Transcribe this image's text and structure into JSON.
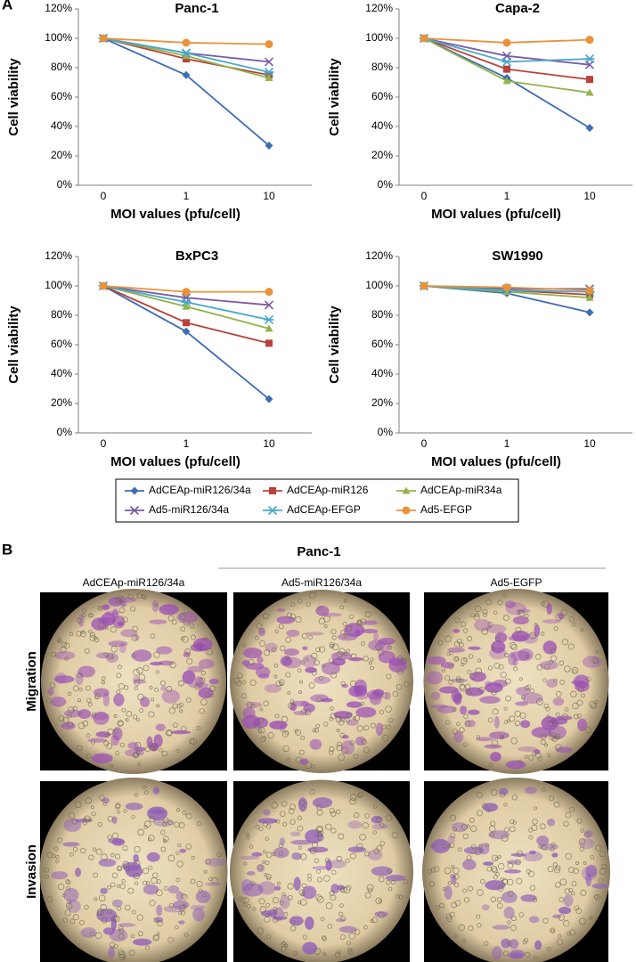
{
  "panels": {
    "a": "A",
    "b": "B"
  },
  "chart_data": [
    {
      "type": "line",
      "title": "Panc-1",
      "x_label": "MOI values (pfu/cell)",
      "y_label": "Cell viability",
      "categories": [
        "0",
        "1",
        "10"
      ],
      "ylim": [
        0,
        120
      ],
      "yticks": [
        {
          "value": 0,
          "label": "0%"
        },
        {
          "value": 20,
          "label": "20%"
        },
        {
          "value": 40,
          "label": "40%"
        },
        {
          "value": 60,
          "label": "60%"
        },
        {
          "value": 80,
          "label": "80%"
        },
        {
          "value": 100,
          "label": "100%"
        },
        {
          "value": 120,
          "label": "120%"
        }
      ],
      "series": [
        {
          "name": "AdCEAp-miR126/34a",
          "color": "#3d6db3",
          "marker": "diamond",
          "values": [
            100,
            75,
            27
          ]
        },
        {
          "name": "AdCEAp-miR126",
          "color": "#b8423c",
          "marker": "square",
          "values": [
            100,
            86,
            75
          ]
        },
        {
          "name": "AdCEAp-miR34a",
          "color": "#93b24a",
          "marker": "triangle",
          "values": [
            100,
            88,
            73
          ]
        },
        {
          "name": "Ad5-miR126/34a",
          "color": "#7a5ca6",
          "marker": "cross",
          "values": [
            100,
            90,
            84
          ]
        },
        {
          "name": "AdCEAp-EFGP",
          "color": "#48a8c8",
          "marker": "star",
          "values": [
            100,
            90,
            77
          ]
        },
        {
          "name": "Ad5-EFGP",
          "color": "#ea923a",
          "marker": "circle",
          "values": [
            100,
            97,
            96
          ]
        }
      ]
    },
    {
      "type": "line",
      "title": "Capa-2",
      "x_label": "MOI values (pfu/cell)",
      "y_label": "Cell viability",
      "categories": [
        "0",
        "1",
        "10"
      ],
      "ylim": [
        0,
        120
      ],
      "yticks": [
        {
          "value": 0,
          "label": "0%"
        },
        {
          "value": 20,
          "label": "20%"
        },
        {
          "value": 40,
          "label": "40%"
        },
        {
          "value": 60,
          "label": "60%"
        },
        {
          "value": 80,
          "label": "80%"
        },
        {
          "value": 100,
          "label": "100%"
        },
        {
          "value": 120,
          "label": "120%"
        }
      ],
      "series": [
        {
          "values": [
            100,
            73,
            39
          ]
        },
        {
          "values": [
            100,
            79,
            72
          ]
        },
        {
          "values": [
            100,
            71,
            63
          ]
        },
        {
          "values": [
            100,
            88,
            82
          ]
        },
        {
          "values": [
            100,
            84,
            86
          ]
        },
        {
          "values": [
            100,
            97,
            99
          ]
        }
      ]
    },
    {
      "type": "line",
      "title": "BxPC3",
      "x_label": "MOI values (pfu/cell)",
      "y_label": "Cell viability",
      "categories": [
        "0",
        "1",
        "10"
      ],
      "ylim": [
        0,
        120
      ],
      "yticks": [
        {
          "value": 0,
          "label": "0%"
        },
        {
          "value": 20,
          "label": "20%"
        },
        {
          "value": 40,
          "label": "40%"
        },
        {
          "value": 60,
          "label": "60%"
        },
        {
          "value": 80,
          "label": "80%"
        },
        {
          "value": 100,
          "label": "100%"
        },
        {
          "value": 120,
          "label": "120%"
        }
      ],
      "series": [
        {
          "values": [
            100,
            69,
            23
          ]
        },
        {
          "values": [
            100,
            75,
            61
          ]
        },
        {
          "values": [
            100,
            86,
            71
          ]
        },
        {
          "values": [
            100,
            92,
            87
          ]
        },
        {
          "values": [
            100,
            89,
            77
          ]
        },
        {
          "values": [
            100,
            96,
            96
          ]
        }
      ]
    },
    {
      "type": "line",
      "title": "SW1990",
      "x_label": "MOI values (pfu/cell)",
      "y_label": "Cell viability",
      "categories": [
        "0",
        "1",
        "10"
      ],
      "ylim": [
        0,
        120
      ],
      "yticks": [
        {
          "value": 0,
          "label": "0%"
        },
        {
          "value": 20,
          "label": "20%"
        },
        {
          "value": 40,
          "label": "40%"
        },
        {
          "value": 60,
          "label": "60%"
        },
        {
          "value": 80,
          "label": "80%"
        },
        {
          "value": 100,
          "label": "100%"
        },
        {
          "value": 120,
          "label": "120%"
        }
      ],
      "series": [
        {
          "values": [
            100,
            95,
            82
          ]
        },
        {
          "values": [
            100,
            97,
            94
          ]
        },
        {
          "values": [
            100,
            96,
            92
          ]
        },
        {
          "values": [
            100,
            98,
            98
          ]
        },
        {
          "values": [
            100,
            97,
            96
          ]
        },
        {
          "values": [
            100,
            99,
            97
          ]
        }
      ]
    }
  ],
  "panel_b": {
    "title": "Panc-1",
    "columns": [
      "AdCEAp-miR126/34a",
      "Ad5-miR126/34a",
      "Ad5-EGFP"
    ],
    "rows": [
      "Migration",
      "Invasion"
    ]
  }
}
